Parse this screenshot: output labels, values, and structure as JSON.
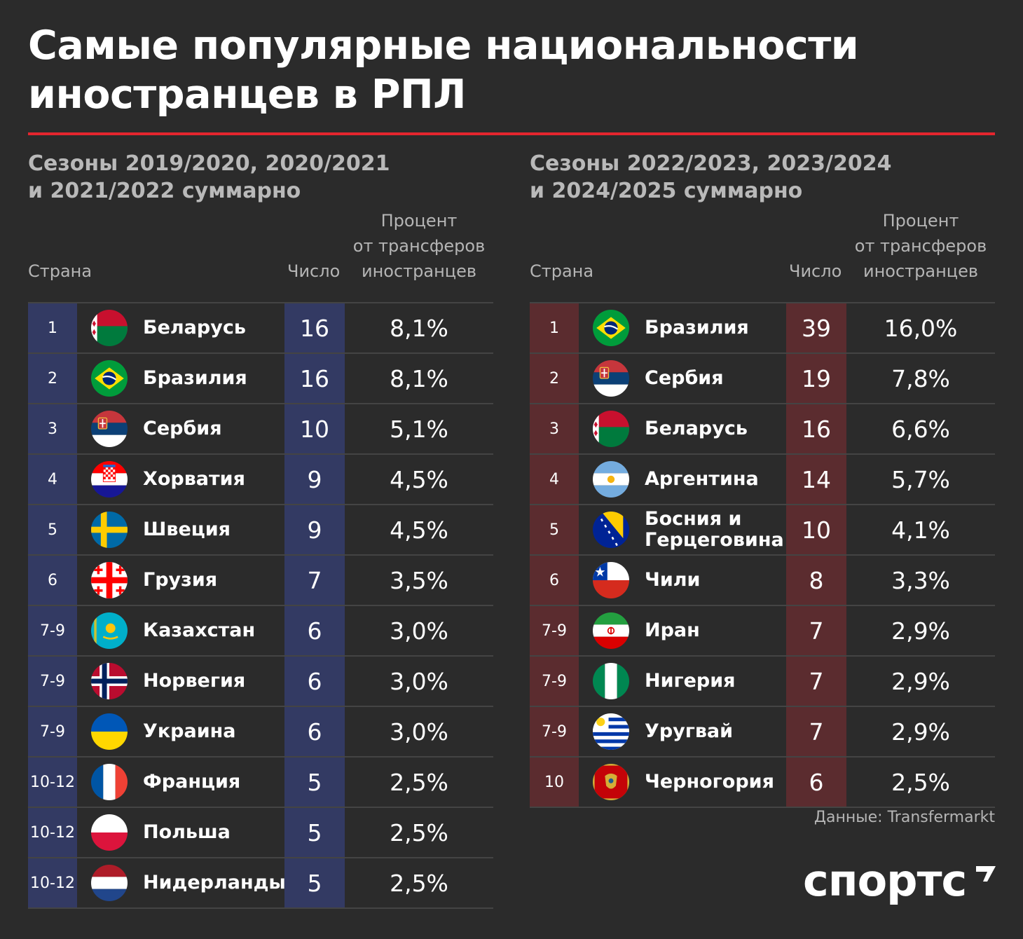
{
  "title_line1": "Самые популярные национальности",
  "title_line2": "иностранцев в РПЛ",
  "accent_color": "#e4252e",
  "left": {
    "subtitle_line1": "Сезоны 2019/2020, 2020/2021",
    "subtitle_line2": "и 2021/2022 суммарно",
    "col_country": "Страна",
    "col_count": "Число",
    "col_pct_line1": "Процент",
    "col_pct_line2": "от трансферов",
    "col_pct_line3": "иностранцев",
    "color": "#333a63"
  },
  "right": {
    "subtitle_line1": "Сезоны 2022/2023, 2023/2024",
    "subtitle_line2": "и 2024/2025 суммарно",
    "col_country": "Страна",
    "col_count": "Число",
    "col_pct_line1": "Процент",
    "col_pct_line2": "от трансферов",
    "col_pct_line3": "иностранцев",
    "color": "#5b2c2f"
  },
  "chart_data": [
    {
      "type": "table",
      "title": "Сезоны 2019/2020, 2020/2021 и 2021/2022 суммарно",
      "columns": [
        "Страна",
        "Число",
        "Процент от трансферов иностранцев"
      ],
      "rows": [
        {
          "rank": "1",
          "country": "Беларусь",
          "flag": "belarus-flag",
          "count": 16,
          "percent": "8,1%"
        },
        {
          "rank": "2",
          "country": "Бразилия",
          "flag": "brazil-flag",
          "count": 16,
          "percent": "8,1%"
        },
        {
          "rank": "3",
          "country": "Сербия",
          "flag": "serbia-flag",
          "count": 10,
          "percent": "5,1%"
        },
        {
          "rank": "4",
          "country": "Хорватия",
          "flag": "croatia-flag",
          "count": 9,
          "percent": "4,5%"
        },
        {
          "rank": "5",
          "country": "Швеция",
          "flag": "sweden-flag",
          "count": 9,
          "percent": "4,5%"
        },
        {
          "rank": "6",
          "country": "Грузия",
          "flag": "georgia-flag",
          "count": 7,
          "percent": "3,5%"
        },
        {
          "rank": "7-9",
          "country": "Казахстан",
          "flag": "kazakhstan-flag",
          "count": 6,
          "percent": "3,0%"
        },
        {
          "rank": "7-9",
          "country": "Норвегия",
          "flag": "norway-flag",
          "count": 6,
          "percent": "3,0%"
        },
        {
          "rank": "7-9",
          "country": "Украина",
          "flag": "ukraine-flag",
          "count": 6,
          "percent": "3,0%"
        },
        {
          "rank": "10-12",
          "country": "Франция",
          "flag": "france-flag",
          "count": 5,
          "percent": "2,5%"
        },
        {
          "rank": "10-12",
          "country": "Польша",
          "flag": "poland-flag",
          "count": 5,
          "percent": "2,5%"
        },
        {
          "rank": "10-12",
          "country": "Нидерланды",
          "flag": "netherlands-flag",
          "count": 5,
          "percent": "2,5%"
        }
      ]
    },
    {
      "type": "table",
      "title": "Сезоны 2022/2023, 2023/2024 и 2024/2025 суммарно",
      "columns": [
        "Страна",
        "Число",
        "Процент от трансферов иностранцев"
      ],
      "rows": [
        {
          "rank": "1",
          "country": "Бразилия",
          "flag": "brazil-flag",
          "count": 39,
          "percent": "16,0%"
        },
        {
          "rank": "2",
          "country": "Сербия",
          "flag": "serbia-flag",
          "count": 19,
          "percent": "7,8%"
        },
        {
          "rank": "3",
          "country": "Беларусь",
          "flag": "belarus-flag",
          "count": 16,
          "percent": "6,6%"
        },
        {
          "rank": "4",
          "country": "Аргентина",
          "flag": "argentina-flag",
          "count": 14,
          "percent": "5,7%"
        },
        {
          "rank": "5",
          "country": "Босния и Герцеговина",
          "flag": "bosnia-flag",
          "count": 10,
          "percent": "4,1%"
        },
        {
          "rank": "6",
          "country": "Чили",
          "flag": "chile-flag",
          "count": 8,
          "percent": "3,3%"
        },
        {
          "rank": "7-9",
          "country": "Иран",
          "flag": "iran-flag",
          "count": 7,
          "percent": "2,9%"
        },
        {
          "rank": "7-9",
          "country": "Нигерия",
          "flag": "nigeria-flag",
          "count": 7,
          "percent": "2,9%"
        },
        {
          "rank": "7-9",
          "country": "Уругвай",
          "flag": "uruguay-flag",
          "count": 7,
          "percent": "2,9%"
        },
        {
          "rank": "10",
          "country": "Черногория",
          "flag": "montenegro-flag",
          "count": 6,
          "percent": "2,5%"
        }
      ]
    }
  ],
  "source": "Данные: Transfermarkt",
  "logo": "спортс"
}
